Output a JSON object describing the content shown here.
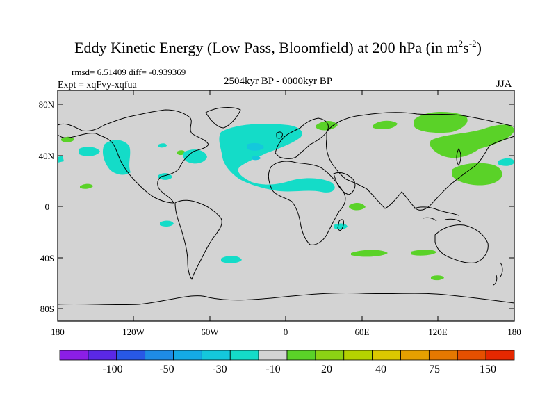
{
  "header": {
    "title_main": "Eddy Kinetic Energy (Low Pass, Bloomfield) at 200 hPa (in m",
    "title_sup1": "2",
    "title_mid": "s",
    "title_sup2": "-2",
    "title_end": ")",
    "stats": "rmsd= 6.51409 diff= -0.939369",
    "expt": "Expt = xqFvy-xqfua",
    "period": "2504kyr BP - 0000kyr BP",
    "season": "JJA"
  },
  "map": {
    "lat_ticks": [
      "80N",
      "40N",
      "0",
      "40S",
      "80S"
    ],
    "lon_ticks": [
      "180",
      "120W",
      "60W",
      "0",
      "60E",
      "120E",
      "180"
    ],
    "background_color": "#d3d3d3"
  },
  "colorbar": {
    "colors": [
      "#8c1ee6",
      "#5a28e6",
      "#2858e6",
      "#1e8ce6",
      "#14aae6",
      "#14c8dc",
      "#14dcc8",
      "#d3d3d3",
      "#5ad228",
      "#8cd214",
      "#b4d200",
      "#dcc800",
      "#e6a000",
      "#e67800",
      "#e65000",
      "#e62800"
    ],
    "labels": [
      "-100",
      "-50",
      "-30",
      "-10",
      "20",
      "40",
      "75",
      "150"
    ]
  }
}
